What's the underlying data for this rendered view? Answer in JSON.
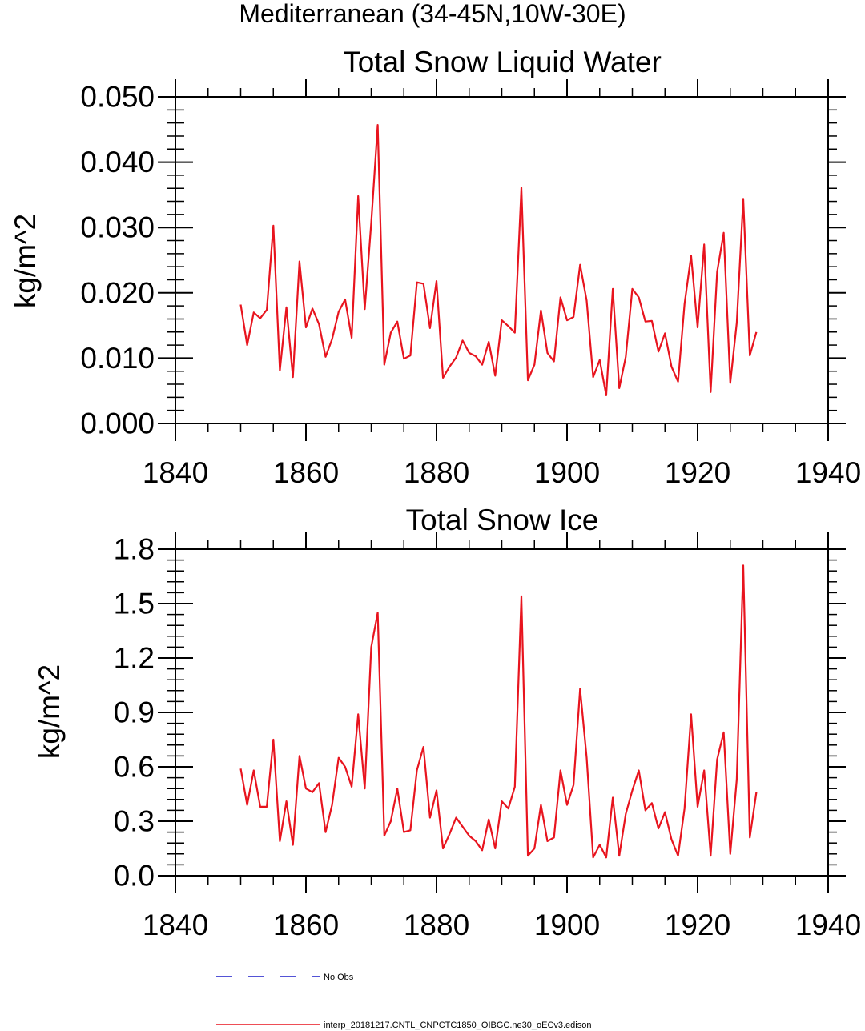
{
  "figure": {
    "title": "Mediterranean (34-45N,10W-30E)",
    "legend": [
      {
        "label": "No Obs",
        "color": "#1a1ac8",
        "style": "dashed"
      },
      {
        "label": "interp_20181217.CNTL_CNPCTC1850_OIBGC.ne30_oECv3.edison",
        "color": "#e8141e",
        "style": "solid"
      }
    ]
  },
  "chart_data": [
    {
      "type": "line",
      "title": "Total Snow Liquid Water",
      "xlabel": "",
      "ylabel": "kg/m^2",
      "xlim": [
        1840,
        1940
      ],
      "ylim": [
        0.0,
        0.05
      ],
      "x_ticks": [
        1840,
        1860,
        1880,
        1900,
        1920,
        1940
      ],
      "x_tick_labels": [
        "1840",
        "1860",
        "1880",
        "1900",
        "1920",
        "1940"
      ],
      "y_ticks": [
        0.0,
        0.01,
        0.02,
        0.03,
        0.04,
        0.05
      ],
      "y_tick_labels": [
        "0.000",
        "0.010",
        "0.020",
        "0.030",
        "0.040",
        "0.050"
      ],
      "grid": false,
      "series": [
        {
          "name": "interp_20181217.CNTL_CNPCTC1850_OIBGC.ne30_oECv3.edison",
          "color": "#e8141e",
          "x_start": 1850,
          "x_step": 1,
          "values": [
            0.0182,
            0.012,
            0.017,
            0.0161,
            0.0174,
            0.0303,
            0.0081,
            0.0178,
            0.0071,
            0.0248,
            0.0147,
            0.0176,
            0.0152,
            0.0102,
            0.0129,
            0.0171,
            0.019,
            0.0131,
            0.0348,
            0.0175,
            0.0307,
            0.0457,
            0.009,
            0.0139,
            0.0156,
            0.0099,
            0.0104,
            0.0216,
            0.0214,
            0.0146,
            0.0218,
            0.007,
            0.0087,
            0.0101,
            0.0127,
            0.0108,
            0.0103,
            0.009,
            0.0125,
            0.0073,
            0.0158,
            0.0149,
            0.0139,
            0.0361,
            0.0066,
            0.009,
            0.0173,
            0.0108,
            0.0095,
            0.0193,
            0.0158,
            0.0163,
            0.0243,
            0.0188,
            0.0071,
            0.0097,
            0.0043,
            0.0206,
            0.0054,
            0.0102,
            0.0206,
            0.0193,
            0.0156,
            0.0157,
            0.011,
            0.0138,
            0.0087,
            0.0064,
            0.0183,
            0.0257,
            0.0147,
            0.0274,
            0.0048,
            0.0232,
            0.0292,
            0.0062,
            0.0154,
            0.0344,
            0.0104,
            0.014
          ]
        }
      ]
    },
    {
      "type": "line",
      "title": "Total Snow Ice",
      "xlabel": "",
      "ylabel": "kg/m^2",
      "xlim": [
        1840,
        1940
      ],
      "ylim": [
        0.0,
        1.8
      ],
      "x_ticks": [
        1840,
        1860,
        1880,
        1900,
        1920,
        1940
      ],
      "x_tick_labels": [
        "1840",
        "1860",
        "1880",
        "1900",
        "1920",
        "1940"
      ],
      "y_ticks": [
        0.0,
        0.3,
        0.6,
        0.9,
        1.2,
        1.5,
        1.8
      ],
      "y_tick_labels": [
        "0.0",
        "0.3",
        "0.6",
        "0.9",
        "1.2",
        "1.5",
        "1.8"
      ],
      "grid": false,
      "series": [
        {
          "name": "interp_20181217.CNTL_CNPCTC1850_OIBGC.ne30_oECv3.edison",
          "color": "#e8141e",
          "x_start": 1850,
          "x_step": 1,
          "values": [
            0.59,
            0.39,
            0.58,
            0.38,
            0.38,
            0.75,
            0.19,
            0.41,
            0.17,
            0.66,
            0.48,
            0.46,
            0.51,
            0.24,
            0.39,
            0.65,
            0.6,
            0.49,
            0.89,
            0.48,
            1.26,
            1.45,
            0.22,
            0.3,
            0.48,
            0.24,
            0.25,
            0.58,
            0.71,
            0.32,
            0.47,
            0.15,
            0.23,
            0.32,
            0.27,
            0.22,
            0.19,
            0.14,
            0.31,
            0.15,
            0.41,
            0.37,
            0.49,
            1.54,
            0.11,
            0.15,
            0.39,
            0.19,
            0.21,
            0.58,
            0.39,
            0.5,
            1.03,
            0.65,
            0.1,
            0.17,
            0.1,
            0.43,
            0.11,
            0.34,
            0.47,
            0.58,
            0.36,
            0.4,
            0.26,
            0.35,
            0.2,
            0.11,
            0.37,
            0.89,
            0.38,
            0.58,
            0.11,
            0.64,
            0.79,
            0.12,
            0.53,
            1.71,
            0.21,
            0.46
          ]
        }
      ]
    }
  ]
}
